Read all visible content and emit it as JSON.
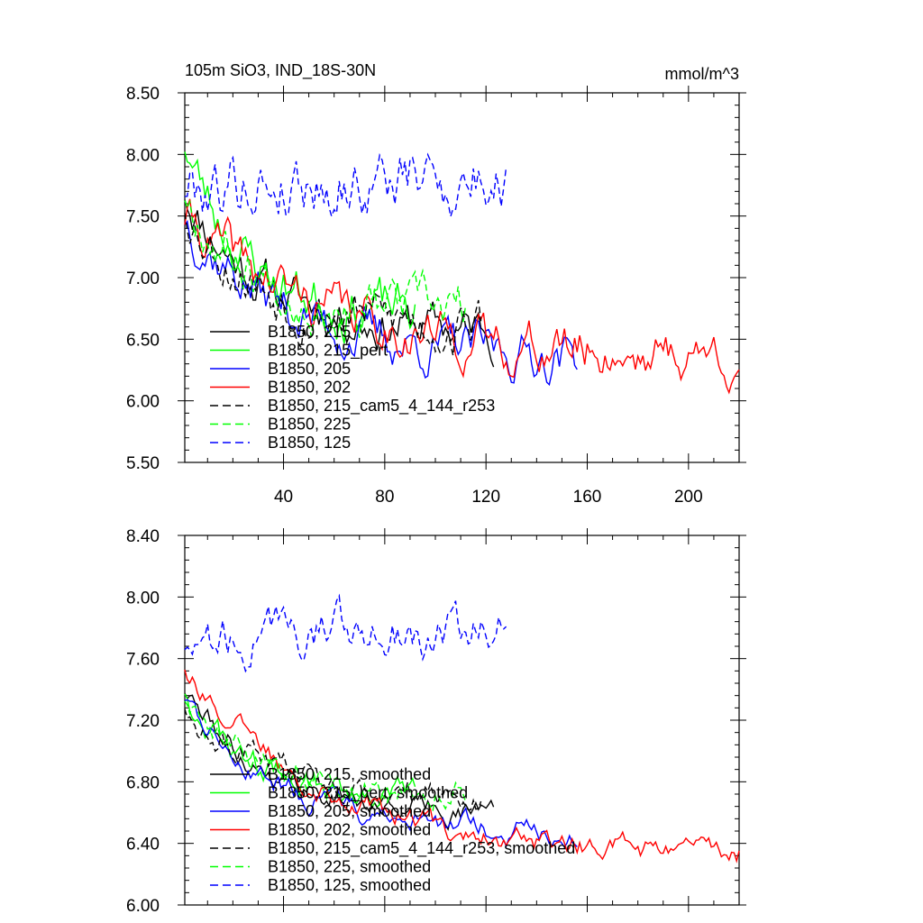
{
  "chart_data": [
    {
      "type": "line",
      "title_left": "105m SiO3, IND_18S-30N",
      "title_right": "mmol/m^3",
      "xlim": [
        1,
        220
      ],
      "ylim": [
        5.5,
        8.5
      ],
      "xticks": [
        40,
        80,
        120,
        160,
        200
      ],
      "yticks": [
        5.5,
        6.0,
        6.5,
        7.0,
        7.5,
        8.0,
        8.5
      ],
      "xtick_labels": [
        "40",
        "80",
        "120",
        "160",
        "200"
      ],
      "ytick_labels": [
        "5.50",
        "6.00",
        "6.50",
        "7.00",
        "7.50",
        "8.00",
        "8.50"
      ],
      "series": [
        {
          "name": "B1850, 215",
          "color": "#000000",
          "dash": false,
          "length": 123,
          "start": 7.7,
          "end": 6.55,
          "noise": 0.12,
          "seed": 11
        },
        {
          "name": "B1850, 215_pert",
          "color": "#00ff00",
          "dash": false,
          "length": 92,
          "start": 8.1,
          "end": 6.7,
          "noise": 0.14,
          "seed": 23
        },
        {
          "name": "B1850, 205",
          "color": "#0000ff",
          "dash": false,
          "length": 156,
          "start": 7.5,
          "end": 6.35,
          "noise": 0.13,
          "seed": 37
        },
        {
          "name": "B1850, 202",
          "color": "#ff0000",
          "dash": false,
          "length": 220,
          "start": 7.5,
          "end": 6.35,
          "noise": 0.13,
          "seed": 41
        },
        {
          "name": "B1850, 215_cam5_4_144_r253",
          "color": "#000000",
          "dash": true,
          "length": 118,
          "start": 7.6,
          "end": 6.6,
          "noise": 0.14,
          "seed": 53
        },
        {
          "name": "B1850, 225",
          "color": "#00ff00",
          "dash": true,
          "length": 112,
          "start": 7.7,
          "end": 6.7,
          "noise": 0.14,
          "seed": 67
        },
        {
          "name": "B1850, 125",
          "color": "#0000ff",
          "dash": true,
          "length": 128,
          "start": 7.75,
          "end": 7.8,
          "noise": 0.18,
          "seed": 79
        }
      ]
    },
    {
      "type": "line",
      "xlim": [
        1,
        220
      ],
      "ylim": [
        6.0,
        8.4
      ],
      "xticks": [
        40,
        80,
        120,
        160,
        200
      ],
      "yticks": [
        6.0,
        6.4,
        6.8,
        7.2,
        7.6,
        8.0,
        8.4
      ],
      "ytick_labels": [
        "6.00",
        "6.40",
        "6.80",
        "7.20",
        "7.60",
        "8.00",
        "8.40"
      ],
      "series": [
        {
          "name": "B1850, 215, smoothed",
          "color": "#000000",
          "dash": false,
          "length": 123,
          "start": 7.4,
          "end": 6.6,
          "noise": 0.05,
          "seed": 111
        },
        {
          "name": "B1850, 215_pert, smoothed",
          "color": "#00ff00",
          "dash": false,
          "length": 92,
          "start": 7.4,
          "end": 6.7,
          "noise": 0.06,
          "seed": 123
        },
        {
          "name": "B1850, 205, smoothed",
          "color": "#0000ff",
          "dash": false,
          "length": 156,
          "start": 7.35,
          "end": 6.45,
          "noise": 0.05,
          "seed": 137
        },
        {
          "name": "B1850, 202, smoothed",
          "color": "#ff0000",
          "dash": false,
          "length": 220,
          "start": 7.55,
          "end": 6.32,
          "noise": 0.05,
          "seed": 141
        },
        {
          "name": "B1850, 215_cam5_4_144_r253, smoothed",
          "color": "#000000",
          "dash": true,
          "length": 118,
          "start": 7.3,
          "end": 6.7,
          "noise": 0.06,
          "seed": 153
        },
        {
          "name": "B1850, 225, smoothed",
          "color": "#00ff00",
          "dash": true,
          "length": 112,
          "start": 7.35,
          "end": 6.75,
          "noise": 0.06,
          "seed": 167
        },
        {
          "name": "B1850, 125, smoothed",
          "color": "#0000ff",
          "dash": true,
          "length": 128,
          "start": 7.7,
          "end": 7.8,
          "noise": 0.1,
          "seed": 179
        }
      ]
    }
  ]
}
